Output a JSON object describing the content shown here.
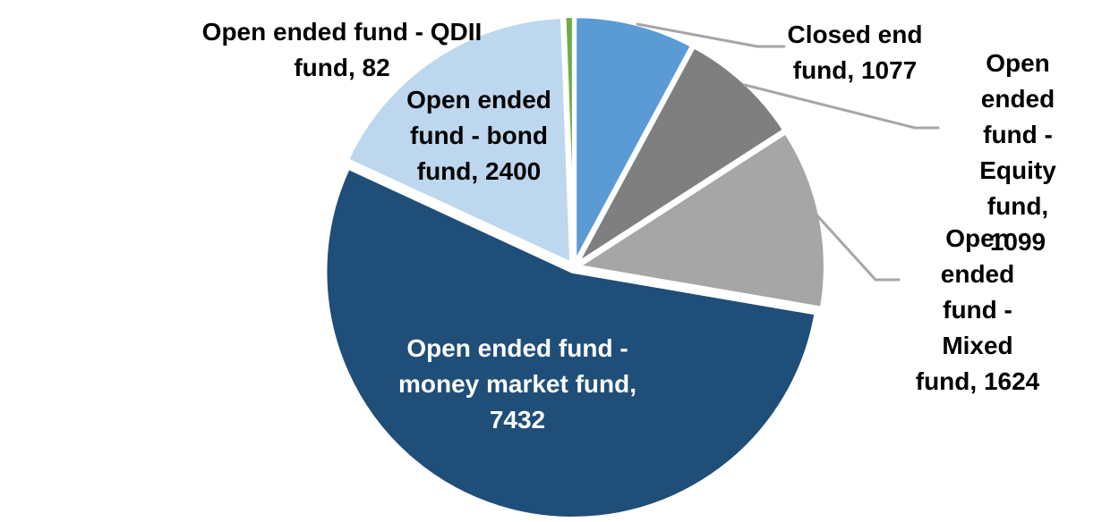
{
  "chart_data": {
    "type": "pie",
    "title": "",
    "direction": "clockwise",
    "start_angle_deg": 0,
    "total": 13714,
    "label_format": "{label}, {value}",
    "leader_line_color": "#A6A6A6",
    "slice_border_color": "#FFFFFF",
    "slices": [
      {
        "id": "closed-end-fund",
        "label": "Closed end fund",
        "value": 1077,
        "color": "#5B9BD5"
      },
      {
        "id": "equity-fund",
        "label": "Open ended fund - Equity fund",
        "value": 1099,
        "color": "#7F7F7F"
      },
      {
        "id": "mixed-fund",
        "label": "Open ended fund - Mixed fund",
        "value": 1624,
        "color": "#A6A6A6"
      },
      {
        "id": "money-market-fund",
        "label": "Open ended fund - money market fund",
        "value": 7432,
        "color": "#1F4E79"
      },
      {
        "id": "bond-fund",
        "label": "Open ended fund - bond fund",
        "value": 2400,
        "color": "#BDD7EE"
      },
      {
        "id": "qdii-fund",
        "label": "Open ended fund - QDII fund",
        "value": 82,
        "color": "#70AD47"
      }
    ]
  },
  "callouts": {
    "qdii": {
      "text": "Open ended fund - QDII\nfund, 82",
      "text_color": "#000000"
    },
    "bond": {
      "text": "Open ended\nfund - bond\nfund, 2400",
      "text_color": "#000000"
    },
    "closed": {
      "text": "Closed end\nfund, 1077",
      "text_color": "#000000"
    },
    "equity": {
      "text": "Open ended\nfund - Equity\nfund, 1099",
      "text_color": "#000000"
    },
    "mixed": {
      "text": "Open ended\nfund - Mixed\nfund, 1624",
      "text_color": "#000000"
    },
    "money": {
      "text": "Open ended fund -\nmoney market fund,\n7432",
      "text_color": "#FFFFFF"
    }
  }
}
